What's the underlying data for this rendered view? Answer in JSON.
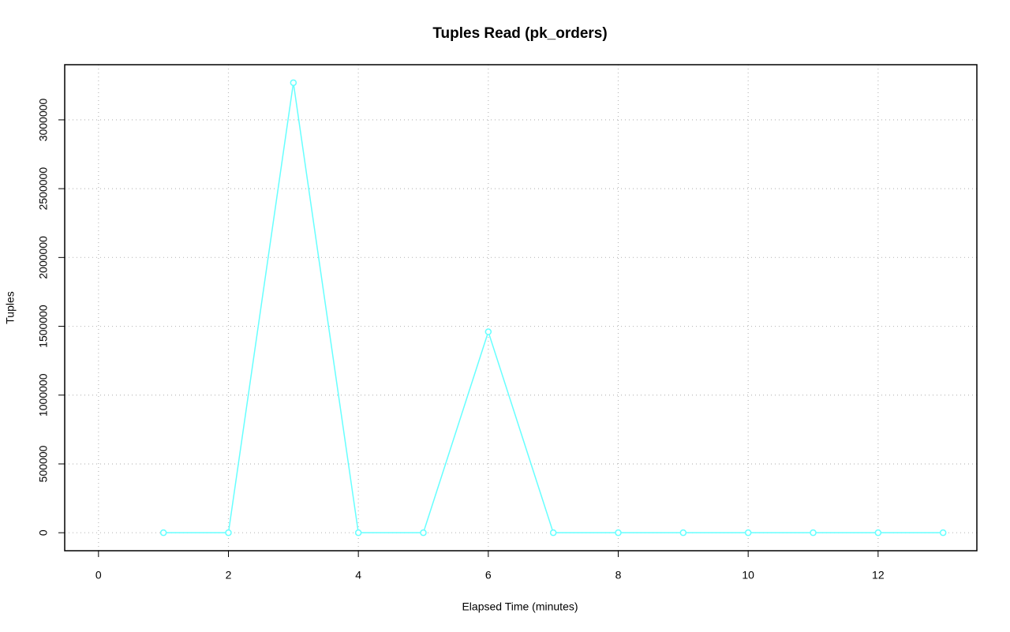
{
  "chart_data": {
    "type": "line",
    "title": "Tuples Read (pk_orders)",
    "x_label": "Elapsed Time (minutes)",
    "y_label": "Tuples",
    "x": [
      1,
      2,
      3,
      4,
      5,
      6,
      7,
      8,
      9,
      10,
      11,
      12,
      13
    ],
    "series": [
      {
        "name": "pk_orders",
        "color": "#66ffff",
        "values": [
          0,
          0,
          3270000,
          0,
          0,
          1460000,
          0,
          0,
          0,
          0,
          0,
          0,
          0
        ]
      }
    ],
    "xlim": [
      -0.52,
      13.52
    ],
    "ylim": [
      -130800,
      3400800
    ],
    "xticks": [
      0,
      2,
      4,
      6,
      8,
      10,
      12
    ],
    "yticks": [
      0,
      500000,
      1000000,
      1500000,
      2000000,
      2500000,
      3000000
    ],
    "grid": true
  }
}
